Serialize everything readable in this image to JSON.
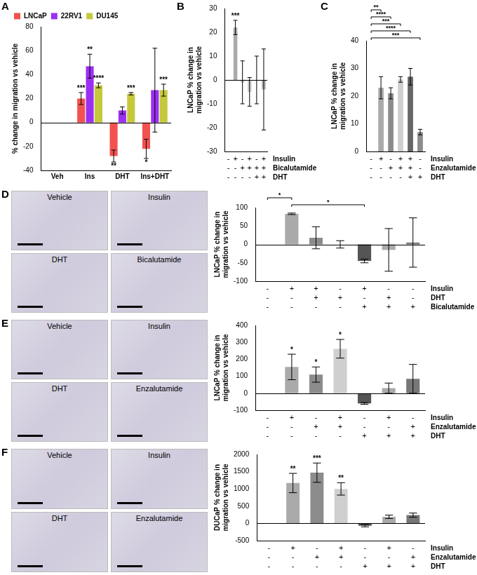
{
  "chart_data": [
    {
      "panel": "A",
      "type": "bar",
      "categories": [
        "Veh",
        "Ins",
        "DHT",
        "Ins+DHT"
      ],
      "y_label": [
        "% change in migration vs vehicle"
      ],
      "ylim": [
        -40,
        80
      ],
      "yticks": [
        -40,
        -20,
        0,
        20,
        40,
        60,
        80
      ],
      "grid": false,
      "legend": "top-left",
      "series": [
        {
          "name": "LNCaP",
          "color": "#f2524f",
          "values": [
            0,
            20,
            -28,
            -22
          ],
          "errors": [
            0,
            5,
            5,
            8
          ],
          "significance": [
            null,
            "***",
            "**",
            "*"
          ]
        },
        {
          "name": "22RV1",
          "color": "#9b30f2",
          "values": [
            0,
            47,
            10,
            27
          ],
          "errors": [
            0,
            10,
            3,
            35
          ],
          "significance": [
            null,
            "**",
            null,
            null
          ]
        },
        {
          "name": "DU145",
          "color": "#c6c83c",
          "values": [
            0,
            31,
            24,
            27
          ],
          "errors": [
            0,
            2,
            1,
            5
          ],
          "significance": [
            null,
            "****",
            "***",
            "***"
          ]
        }
      ]
    },
    {
      "panel": "B",
      "type": "bar",
      "categories": [
        null,
        null,
        null,
        null,
        null,
        null
      ],
      "y_label": [
        "LNCaP % change in",
        "migration vs vehicle"
      ],
      "ylim": [
        -30,
        30
      ],
      "yticks": [
        -30,
        -20,
        -10,
        0,
        10,
        20,
        30
      ],
      "grid": false,
      "conditions": [
        {
          "name": "Insulin",
          "values": [
            "-",
            "+",
            "-",
            "+",
            "-",
            "+"
          ]
        },
        {
          "name": "Bicalutamide",
          "values": [
            "-",
            "-",
            "+",
            "+",
            "+",
            "+"
          ]
        },
        {
          "name": "DHT",
          "values": [
            "-",
            "-",
            "-",
            "-",
            "+",
            "+"
          ]
        }
      ],
      "series": [
        {
          "values": [
            0,
            22,
            -1,
            -5,
            0,
            -4
          ],
          "errors": [
            0,
            3,
            9,
            6,
            10,
            17
          ],
          "colors": [
            "#aaaaaa",
            "#aaaaaa",
            "#c8c8c8",
            "#d2d2d2",
            "#999999",
            "#b4b4b4"
          ],
          "significance": [
            null,
            "***",
            null,
            null,
            null,
            null
          ]
        }
      ]
    },
    {
      "panel": "C",
      "type": "bar",
      "categories": [
        null,
        null,
        null,
        null,
        null,
        null
      ],
      "y_label": [
        "LNCaP % change in",
        "migration vs vehicle"
      ],
      "ylim": [
        0,
        40
      ],
      "yticks": [
        0,
        10,
        20,
        30,
        40
      ],
      "grid": false,
      "conditions": [
        {
          "name": "Insulin",
          "values": [
            "-",
            "+",
            "-",
            "+",
            "+",
            "-"
          ]
        },
        {
          "name": "Enzalutamide",
          "values": [
            "-",
            "-",
            "+",
            "+",
            "+",
            "-"
          ]
        },
        {
          "name": "DHT",
          "values": [
            "-",
            "-",
            "-",
            "-",
            "+",
            "+"
          ]
        }
      ],
      "brackets": [
        {
          "from": 0,
          "to": 1,
          "label": "**"
        },
        {
          "from": 0,
          "to": 2,
          "label": "****"
        },
        {
          "from": 0,
          "to": 3,
          "label": "***"
        },
        {
          "from": 0,
          "to": 4,
          "label": "****"
        },
        {
          "from": 0,
          "to": 5,
          "label": "***"
        }
      ],
      "series": [
        {
          "values": [
            0,
            23,
            21,
            26,
            27,
            7
          ],
          "errors": [
            0,
            4,
            2,
            1,
            3,
            1
          ],
          "colors": [
            "#aaaaaa",
            "#aaaaaa",
            "#8c8c8c",
            "#cfcfcf",
            "#666666",
            "#8c8c8c"
          ]
        }
      ]
    },
    {
      "panel": "D",
      "type": "bar",
      "images": [
        "Vehicle",
        "Insulin",
        "DHT",
        "Bicalutamide"
      ],
      "categories": [
        null,
        null,
        null,
        null,
        null,
        null,
        null
      ],
      "y_label": [
        "LNCaP % change in",
        "migration vs vehicle"
      ],
      "ylim": [
        -100,
        100
      ],
      "yticks": [
        -100,
        -50,
        0,
        50,
        100
      ],
      "grid": false,
      "conditions": [
        {
          "name": "Insulin",
          "values": [
            "-",
            "+",
            "+",
            "-",
            "+",
            "-",
            "-"
          ]
        },
        {
          "name": "DHT",
          "values": [
            "-",
            "-",
            "+",
            "+",
            "-",
            "+",
            "-"
          ]
        },
        {
          "name": "Bicalutamide",
          "values": [
            "-",
            "-",
            "-",
            "-",
            "+",
            "+",
            "+"
          ]
        }
      ],
      "brackets": [
        {
          "from": 0,
          "to": 1,
          "label": "*"
        },
        {
          "from": 1,
          "to": 4,
          "label": "*"
        }
      ],
      "series": [
        {
          "values": [
            0,
            83,
            18,
            0,
            -45,
            -15,
            5
          ],
          "errors": [
            0,
            2,
            30,
            10,
            5,
            58,
            67
          ],
          "colors": [
            "#aaaaaa",
            "#aaaaaa",
            "#8c8c8c",
            "#d0d0d0",
            "#555555",
            "#aaaaaa",
            "#777777"
          ]
        }
      ]
    },
    {
      "panel": "E",
      "type": "bar",
      "images": [
        "Vehicle",
        "Insulin",
        "DHT",
        "Enzalutamide"
      ],
      "categories": [
        null,
        null,
        null,
        null,
        null,
        null,
        null
      ],
      "y_label": [
        "LNCaP % change in",
        "migration vs vehicle"
      ],
      "ylim": [
        -100,
        400
      ],
      "yticks": [
        -100,
        0,
        100,
        200,
        300,
        400
      ],
      "grid": false,
      "conditions": [
        {
          "name": "Insulin",
          "values": [
            "-",
            "+",
            "-",
            "+",
            "-",
            "+",
            "-"
          ]
        },
        {
          "name": "Enzalutamide",
          "values": [
            "-",
            "-",
            "+",
            "+",
            "-",
            "-",
            "+"
          ]
        },
        {
          "name": "DHT",
          "values": [
            "-",
            "-",
            "-",
            "-",
            "+",
            "+",
            "+"
          ]
        }
      ],
      "series": [
        {
          "values": [
            0,
            155,
            110,
            262,
            -60,
            30,
            85
          ],
          "errors": [
            0,
            75,
            45,
            55,
            5,
            30,
            85
          ],
          "colors": [
            "#aaaaaa",
            "#aaaaaa",
            "#8c8c8c",
            "#cfcfcf",
            "#555555",
            "#aaaaaa",
            "#777777"
          ],
          "significance": [
            null,
            "*",
            "*",
            "*",
            null,
            null,
            null
          ]
        }
      ]
    },
    {
      "panel": "F",
      "type": "bar",
      "images": [
        "Vehicle",
        "Insulin",
        "DHT",
        "Enzalutamide"
      ],
      "categories": [
        null,
        null,
        null,
        null,
        null,
        null,
        null
      ],
      "y_label": [
        "DUCaP % change in",
        "migration vs vehicle"
      ],
      "ylim": [
        -500,
        2000
      ],
      "yticks": [
        -500,
        0,
        500,
        1000,
        1500,
        2000
      ],
      "grid": false,
      "conditions": [
        {
          "name": "Insulin",
          "values": [
            "-",
            "+",
            "-",
            "+",
            "-",
            "+",
            "-"
          ]
        },
        {
          "name": "Enzalutamide",
          "values": [
            "-",
            "-",
            "+",
            "+",
            "-",
            "-",
            "+"
          ]
        },
        {
          "name": "DHT",
          "values": [
            "-",
            "-",
            "-",
            "-",
            "+",
            "+",
            "+"
          ]
        }
      ],
      "series": [
        {
          "values": [
            0,
            1170,
            1470,
            1000,
            -70,
            190,
            240
          ],
          "errors": [
            0,
            280,
            280,
            180,
            30,
            50,
            60
          ],
          "colors": [
            "#aaaaaa",
            "#aaaaaa",
            "#8c8c8c",
            "#cfcfcf",
            "#555555",
            "#aaaaaa",
            "#777777"
          ],
          "significance": [
            null,
            "**",
            "***",
            "**",
            null,
            null,
            null
          ]
        }
      ]
    }
  ]
}
